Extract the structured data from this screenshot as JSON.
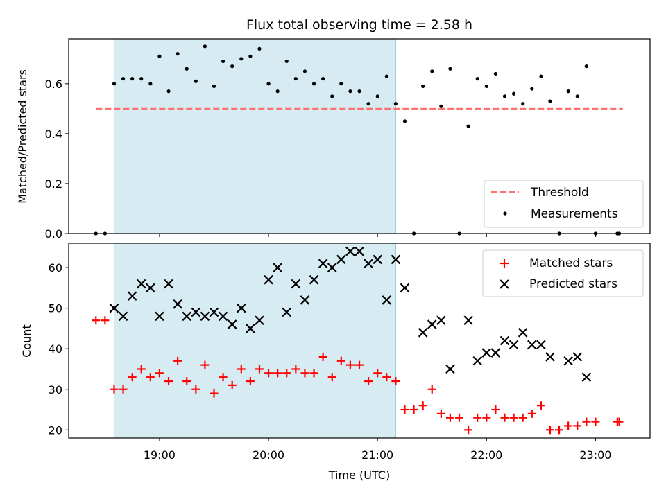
{
  "chart_data": [
    {
      "type": "scatter",
      "title": "Flux total observing time = 2.58 h",
      "xlabel": "",
      "ylabel": "Matched/Predicted stars",
      "xlim": [
        "18:10",
        "23:30"
      ],
      "ylim": [
        0,
        0.78
      ],
      "yticks": [
        "0.0",
        "0.2",
        "0.4",
        "0.6"
      ],
      "xticks": [
        "19:00",
        "20:00",
        "21:00",
        "22:00",
        "23:00"
      ],
      "shaded_interval": {
        "start": "18:35",
        "end": "21:10",
        "color": "#add8e6"
      },
      "threshold": {
        "name": "Threshold",
        "value": 0.5,
        "x_start": "18:25",
        "x_end": "23:15",
        "color": "#ff7070",
        "style": "dashed"
      },
      "legend": {
        "location": "lower right",
        "entries": [
          "Threshold",
          "Measurements"
        ]
      },
      "series": [
        {
          "name": "Measurements",
          "color": "#000000",
          "marker": "dot",
          "points": [
            [
              "18:25",
              0.0
            ],
            [
              "18:30",
              0.0
            ],
            [
              "18:35",
              0.6
            ],
            [
              "18:40",
              0.62
            ],
            [
              "18:45",
              0.62
            ],
            [
              "18:50",
              0.62
            ],
            [
              "18:55",
              0.6
            ],
            [
              "19:00",
              0.71
            ],
            [
              "19:05",
              0.57
            ],
            [
              "19:10",
              0.72
            ],
            [
              "19:15",
              0.66
            ],
            [
              "19:20",
              0.61
            ],
            [
              "19:25",
              0.75
            ],
            [
              "19:30",
              0.59
            ],
            [
              "19:35",
              0.69
            ],
            [
              "19:40",
              0.67
            ],
            [
              "19:45",
              0.7
            ],
            [
              "19:50",
              0.71
            ],
            [
              "19:55",
              0.74
            ],
            [
              "20:00",
              0.6
            ],
            [
              "20:05",
              0.57
            ],
            [
              "20:10",
              0.69
            ],
            [
              "20:15",
              0.62
            ],
            [
              "20:20",
              0.65
            ],
            [
              "20:25",
              0.6
            ],
            [
              "20:30",
              0.62
            ],
            [
              "20:35",
              0.55
            ],
            [
              "20:40",
              0.6
            ],
            [
              "20:45",
              0.57
            ],
            [
              "20:50",
              0.57
            ],
            [
              "20:55",
              0.52
            ],
            [
              "21:00",
              0.55
            ],
            [
              "21:05",
              0.63
            ],
            [
              "21:10",
              0.52
            ],
            [
              "21:15",
              0.45
            ],
            [
              "21:20",
              0.0
            ],
            [
              "21:25",
              0.59
            ],
            [
              "21:30",
              0.65
            ],
            [
              "21:35",
              0.51
            ],
            [
              "21:40",
              0.66
            ],
            [
              "21:45",
              0.0
            ],
            [
              "21:50",
              0.43
            ],
            [
              "21:55",
              0.62
            ],
            [
              "22:00",
              0.59
            ],
            [
              "22:05",
              0.64
            ],
            [
              "22:10",
              0.55
            ],
            [
              "22:15",
              0.56
            ],
            [
              "22:20",
              0.52
            ],
            [
              "22:25",
              0.58
            ],
            [
              "22:30",
              0.63
            ],
            [
              "22:35",
              0.53
            ],
            [
              "22:40",
              0.0
            ],
            [
              "22:45",
              0.57
            ],
            [
              "22:50",
              0.55
            ],
            [
              "22:55",
              0.67
            ],
            [
              "23:00",
              0.0
            ],
            [
              "23:12",
              0.0
            ],
            [
              "23:13",
              0.0
            ]
          ]
        }
      ]
    },
    {
      "type": "scatter",
      "title": "",
      "xlabel": "Time (UTC)",
      "ylabel": "Count",
      "xlim": [
        "18:10",
        "23:30"
      ],
      "ylim": [
        18,
        66
      ],
      "yticks": [
        "20",
        "30",
        "40",
        "50",
        "60"
      ],
      "xticks": [
        "19:00",
        "20:00",
        "21:00",
        "22:00",
        "23:00"
      ],
      "shaded_interval": {
        "start": "18:35",
        "end": "21:10",
        "color": "#add8e6"
      },
      "legend": {
        "location": "upper right",
        "entries": [
          "Matched stars",
          "Predicted stars"
        ]
      },
      "series": [
        {
          "name": "Matched stars",
          "color": "#ff0000",
          "marker": "plus",
          "points": [
            [
              "18:25",
              47
            ],
            [
              "18:30",
              47
            ],
            [
              "18:35",
              30
            ],
            [
              "18:40",
              30
            ],
            [
              "18:45",
              33
            ],
            [
              "18:50",
              35
            ],
            [
              "18:55",
              33
            ],
            [
              "19:00",
              34
            ],
            [
              "19:05",
              32
            ],
            [
              "19:10",
              37
            ],
            [
              "19:15",
              32
            ],
            [
              "19:20",
              30
            ],
            [
              "19:25",
              36
            ],
            [
              "19:30",
              29
            ],
            [
              "19:35",
              33
            ],
            [
              "19:40",
              31
            ],
            [
              "19:45",
              35
            ],
            [
              "19:50",
              32
            ],
            [
              "19:55",
              35
            ],
            [
              "20:00",
              34
            ],
            [
              "20:05",
              34
            ],
            [
              "20:10",
              34
            ],
            [
              "20:15",
              35
            ],
            [
              "20:20",
              34
            ],
            [
              "20:25",
              34
            ],
            [
              "20:30",
              38
            ],
            [
              "20:35",
              33
            ],
            [
              "20:40",
              37
            ],
            [
              "20:45",
              36
            ],
            [
              "20:50",
              36
            ],
            [
              "20:55",
              32
            ],
            [
              "21:00",
              34
            ],
            [
              "21:05",
              33
            ],
            [
              "21:10",
              32
            ],
            [
              "21:15",
              25
            ],
            [
              "21:20",
              25
            ],
            [
              "21:25",
              26
            ],
            [
              "21:30",
              30
            ],
            [
              "21:35",
              24
            ],
            [
              "21:40",
              23
            ],
            [
              "21:45",
              23
            ],
            [
              "21:50",
              20
            ],
            [
              "21:55",
              23
            ],
            [
              "22:00",
              23
            ],
            [
              "22:05",
              25
            ],
            [
              "22:10",
              23
            ],
            [
              "22:15",
              23
            ],
            [
              "22:20",
              23
            ],
            [
              "22:25",
              24
            ],
            [
              "22:30",
              26
            ],
            [
              "22:35",
              20
            ],
            [
              "22:40",
              20
            ],
            [
              "22:45",
              21
            ],
            [
              "22:50",
              21
            ],
            [
              "22:55",
              22
            ],
            [
              "23:00",
              22
            ],
            [
              "23:12",
              22
            ],
            [
              "23:13",
              22
            ]
          ]
        },
        {
          "name": "Predicted stars",
          "color": "#000000",
          "marker": "x",
          "points": [
            [
              "18:35",
              50
            ],
            [
              "18:40",
              48
            ],
            [
              "18:45",
              53
            ],
            [
              "18:50",
              56
            ],
            [
              "18:55",
              55
            ],
            [
              "19:00",
              48
            ],
            [
              "19:05",
              56
            ],
            [
              "19:10",
              51
            ],
            [
              "19:15",
              48
            ],
            [
              "19:20",
              49
            ],
            [
              "19:25",
              48
            ],
            [
              "19:30",
              49
            ],
            [
              "19:35",
              48
            ],
            [
              "19:40",
              46
            ],
            [
              "19:45",
              50
            ],
            [
              "19:50",
              45
            ],
            [
              "19:55",
              47
            ],
            [
              "20:00",
              57
            ],
            [
              "20:05",
              60
            ],
            [
              "20:10",
              49
            ],
            [
              "20:15",
              56
            ],
            [
              "20:20",
              52
            ],
            [
              "20:25",
              57
            ],
            [
              "20:30",
              61
            ],
            [
              "20:35",
              60
            ],
            [
              "20:40",
              62
            ],
            [
              "20:45",
              64
            ],
            [
              "20:50",
              64
            ],
            [
              "20:55",
              61
            ],
            [
              "21:00",
              62
            ],
            [
              "21:05",
              52
            ],
            [
              "21:10",
              62
            ],
            [
              "21:15",
              55
            ],
            [
              "21:25",
              44
            ],
            [
              "21:30",
              46
            ],
            [
              "21:35",
              47
            ],
            [
              "21:40",
              35
            ],
            [
              "21:50",
              47
            ],
            [
              "21:55",
              37
            ],
            [
              "22:00",
              39
            ],
            [
              "22:05",
              39
            ],
            [
              "22:10",
              42
            ],
            [
              "22:15",
              41
            ],
            [
              "22:20",
              44
            ],
            [
              "22:25",
              41
            ],
            [
              "22:30",
              41
            ],
            [
              "22:35",
              38
            ],
            [
              "22:45",
              37
            ],
            [
              "22:50",
              38
            ],
            [
              "22:55",
              33
            ]
          ]
        }
      ]
    }
  ]
}
